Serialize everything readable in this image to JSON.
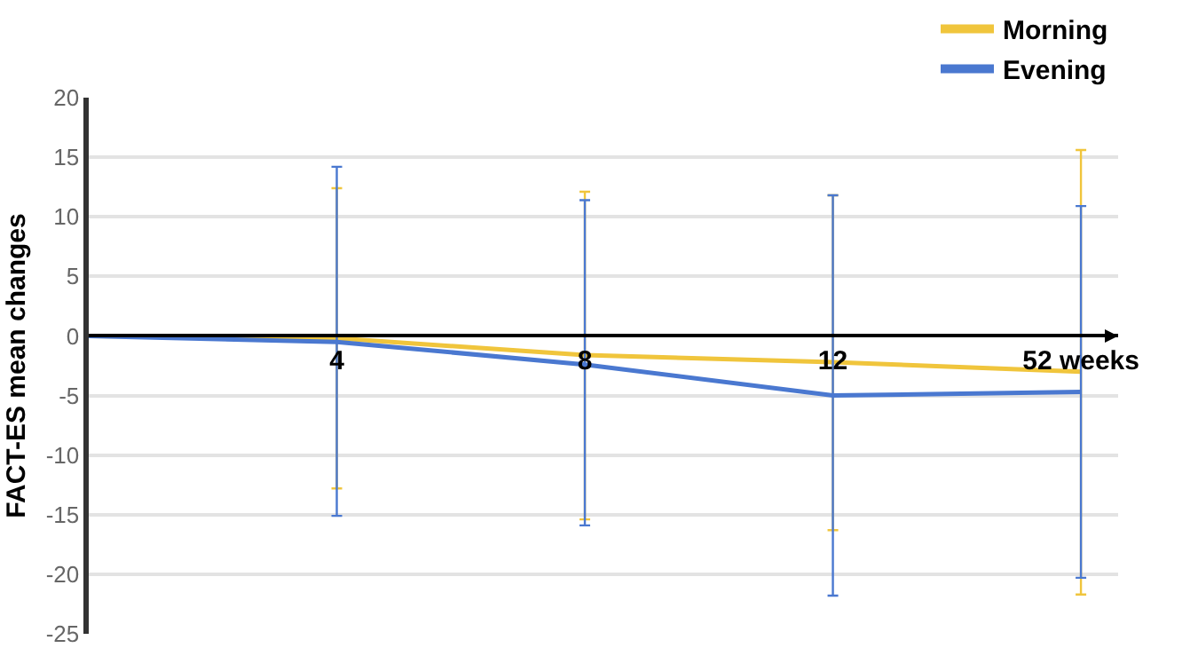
{
  "chart_data": {
    "type": "line",
    "ylabel": "FACT-ES mean changes",
    "categories": [
      null,
      "4",
      "8",
      "12",
      "52 weeks"
    ],
    "series": [
      {
        "name": "Morning",
        "color": "#f0c53c",
        "values": [
          0,
          -0.2,
          -1.6,
          -2.2,
          -3.0
        ],
        "errors": [
          null,
          [
            -12.8,
            12.4
          ],
          [
            -15.4,
            12.1
          ],
          [
            -16.3,
            11.8
          ],
          [
            -21.7,
            15.6
          ]
        ]
      },
      {
        "name": "Evening",
        "color": "#4a78d0",
        "values": [
          0,
          -0.5,
          -2.4,
          -5.0,
          -4.7
        ],
        "errors": [
          null,
          [
            -15.1,
            14.2
          ],
          [
            -15.9,
            11.4
          ],
          [
            -21.8,
            11.8
          ],
          [
            -20.3,
            10.9
          ]
        ]
      }
    ],
    "ylim": [
      -25,
      20
    ],
    "yticks": [
      -25,
      -20,
      -15,
      -10,
      -5,
      0,
      5,
      10,
      15,
      20
    ],
    "grid": "y",
    "legend": "top right",
    "marker": "none",
    "line_style": "solid"
  }
}
